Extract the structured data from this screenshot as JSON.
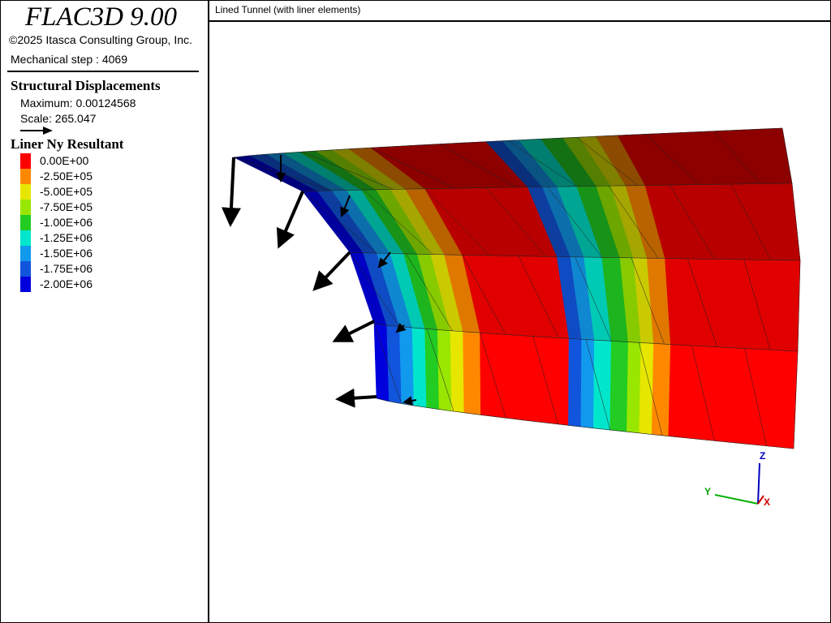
{
  "app": {
    "title": "FLAC3D 9.00",
    "copyright": "©2025 Itasca Consulting Group, Inc.",
    "step": "Mechanical step : 4069"
  },
  "displacements": {
    "title": "Structural Displacements",
    "maximum": "Maximum: 0.00124568",
    "scale": "Scale: 265.047"
  },
  "legend": {
    "title": "Liner Ny Resultant",
    "items": [
      {
        "label": "0.00E+00",
        "color": "#ff0000"
      },
      {
        "label": "-2.50E+05",
        "color": "#ff8800"
      },
      {
        "label": "-5.00E+05",
        "color": "#e6e600"
      },
      {
        "label": "-7.50E+05",
        "color": "#99e600"
      },
      {
        "label": "-1.00E+06",
        "color": "#22cc22"
      },
      {
        "label": "-1.25E+06",
        "color": "#00e6cc"
      },
      {
        "label": "-1.50E+06",
        "color": "#1199ee"
      },
      {
        "label": "-1.75E+06",
        "color": "#1155dd"
      },
      {
        "label": "-2.00E+06",
        "color": "#0000dd"
      }
    ]
  },
  "view": {
    "title": "Lined Tunnel (with liner elements)",
    "axes": {
      "z": "Z",
      "y": "Y",
      "x": "X"
    }
  }
}
